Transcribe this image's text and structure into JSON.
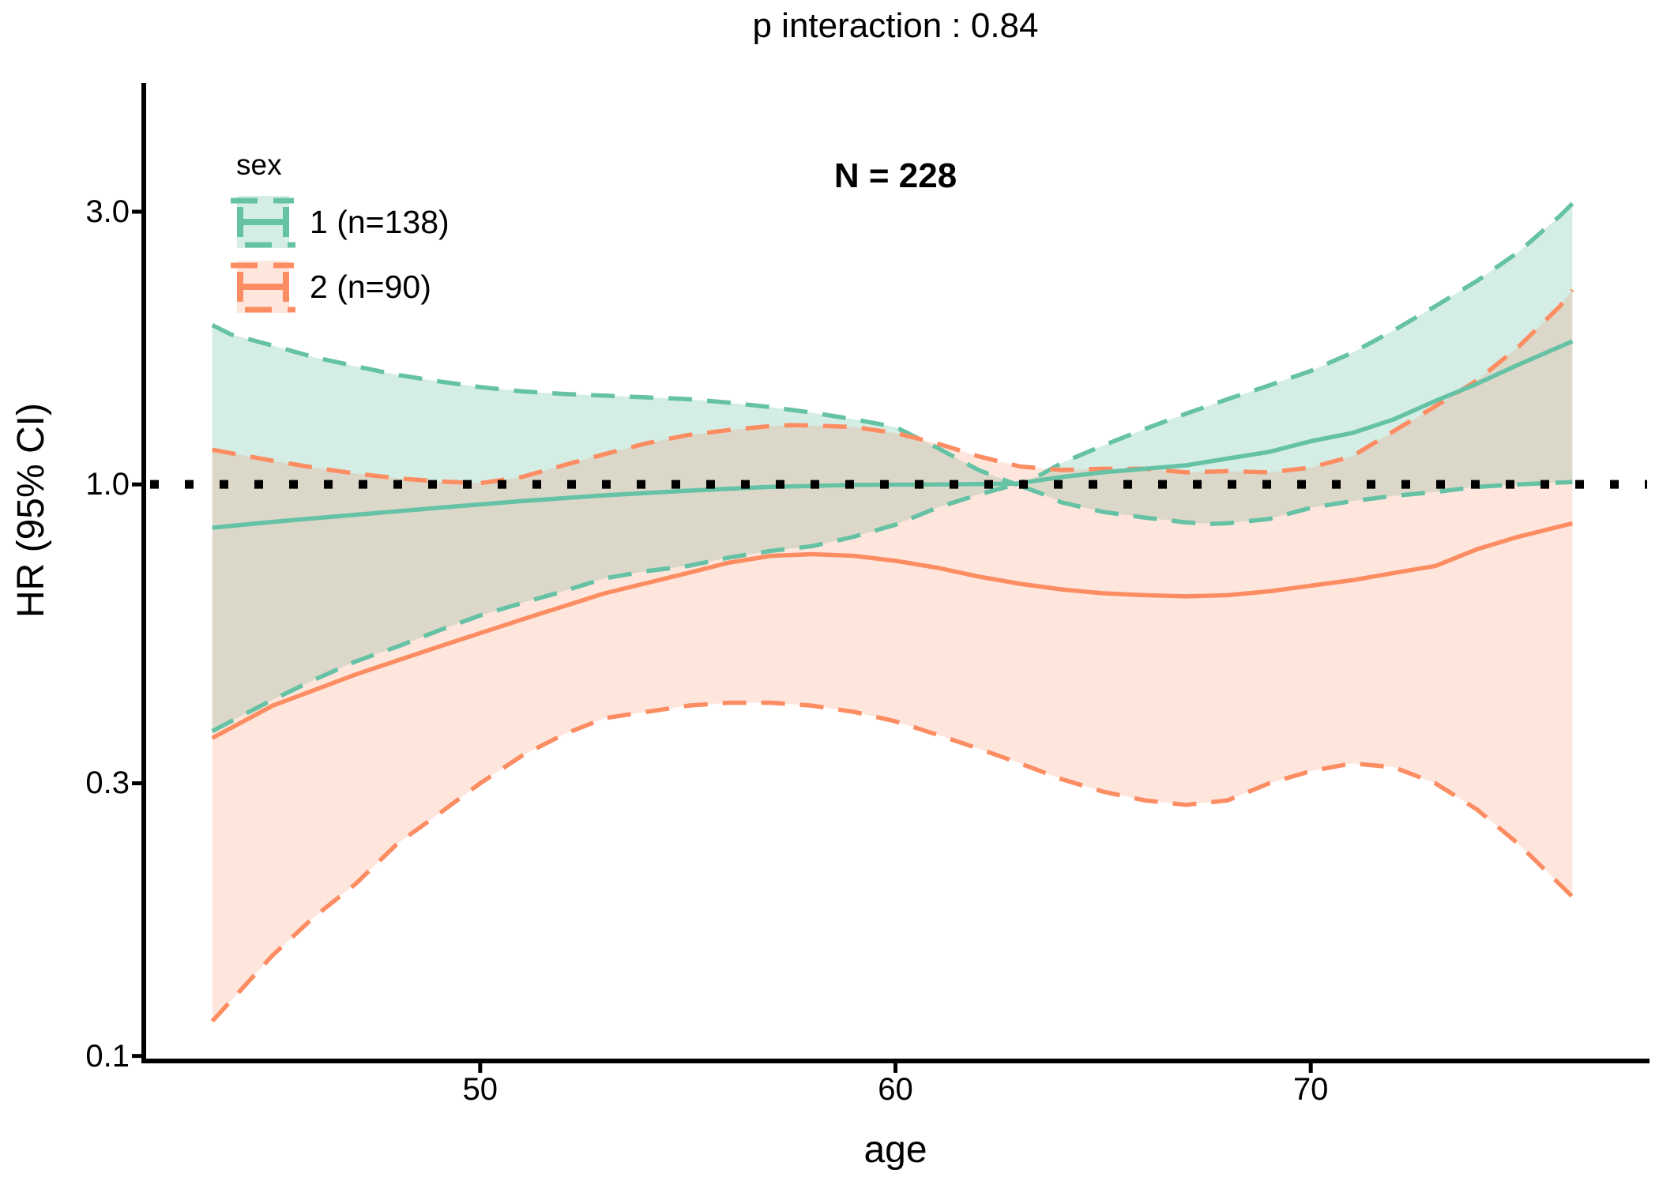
{
  "title": "p interaction : 0.84",
  "annotation": "N = 228",
  "legend": {
    "title": "sex",
    "items": [
      {
        "label": "1 (n=138)",
        "color": "#66C2A5",
        "fill": "rgba(102,194,165,0.28)"
      },
      {
        "label": "2 (n=90)",
        "color": "#FC8D62",
        "fill": "rgba(252,141,98,0.22)"
      }
    ]
  },
  "axes": {
    "x": {
      "label": "age",
      "ticks": [
        50,
        60,
        70
      ],
      "tick_labels": [
        "50",
        "60",
        "70"
      ],
      "range": [
        41.9,
        78.1
      ]
    },
    "y": {
      "label": "HR (95% CI)",
      "scale": "log",
      "ticks": [
        3.0,
        1.0,
        0.3,
        0.1
      ],
      "tick_labels": [
        "3.0",
        "1.0",
        "0.3",
        "0.1"
      ],
      "range": [
        0.098,
        5.04
      ]
    }
  },
  "chart_data": {
    "type": "line",
    "title": "p interaction : 0.84",
    "annotation": "N = 228",
    "xlabel": "age",
    "ylabel": "HR (95% CI)",
    "y_scale": "log",
    "x_ticks": [
      50,
      60,
      70
    ],
    "y_ticks": [
      3.0,
      1.0,
      0.3,
      0.1
    ],
    "x_range": [
      41.9,
      78.1
    ],
    "y_range": [
      0.098,
      5.04
    ],
    "x_data_range": [
      43.55,
      76.3
    ],
    "reference_hr": 1.0,
    "legend_position": "top-left-inside",
    "grid": false,
    "series": [
      {
        "name": "1 (n=138)",
        "color": "#66C2A5",
        "fill": "rgba(102,194,165,0.28)",
        "line": [
          [
            43.55,
            0.84
          ],
          [
            45,
            0.86
          ],
          [
            47,
            0.885
          ],
          [
            49,
            0.91
          ],
          [
            51,
            0.935
          ],
          [
            53,
            0.957
          ],
          [
            55,
            0.975
          ],
          [
            57,
            0.99
          ],
          [
            59,
            0.998
          ],
          [
            61,
            1.0
          ],
          [
            62.9,
            1.003
          ],
          [
            64,
            1.03
          ],
          [
            65,
            1.05
          ],
          [
            66,
            1.065
          ],
          [
            67,
            1.08
          ],
          [
            68,
            1.11
          ],
          [
            69,
            1.14
          ],
          [
            70,
            1.19
          ],
          [
            71,
            1.23
          ],
          [
            72,
            1.3
          ],
          [
            73,
            1.4
          ],
          [
            74,
            1.5
          ],
          [
            75,
            1.62
          ],
          [
            76.3,
            1.78
          ]
        ],
        "upper": [
          [
            43.55,
            1.9
          ],
          [
            44,
            1.83
          ],
          [
            45,
            1.75
          ],
          [
            46,
            1.67
          ],
          [
            47,
            1.61
          ],
          [
            48,
            1.555
          ],
          [
            49,
            1.515
          ],
          [
            50,
            1.48
          ],
          [
            51,
            1.455
          ],
          [
            52,
            1.44
          ],
          [
            53,
            1.43
          ],
          [
            54,
            1.42
          ],
          [
            55,
            1.41
          ],
          [
            56,
            1.39
          ],
          [
            57,
            1.365
          ],
          [
            58,
            1.335
          ],
          [
            59,
            1.3
          ],
          [
            60,
            1.26
          ],
          [
            61,
            1.16
          ],
          [
            62,
            1.06
          ],
          [
            62.9,
            1.0
          ],
          [
            63.5,
            1.04
          ],
          [
            64,
            1.09
          ],
          [
            65,
            1.17
          ],
          [
            66,
            1.25
          ],
          [
            67,
            1.33
          ],
          [
            68,
            1.41
          ],
          [
            69,
            1.49
          ],
          [
            70,
            1.58
          ],
          [
            71,
            1.7
          ],
          [
            72,
            1.86
          ],
          [
            73,
            2.05
          ],
          [
            74,
            2.27
          ],
          [
            75,
            2.55
          ],
          [
            76,
            2.95
          ],
          [
            76.3,
            3.1
          ]
        ],
        "lower": [
          [
            43.55,
            0.37
          ],
          [
            44,
            0.385
          ],
          [
            45,
            0.42
          ],
          [
            46,
            0.455
          ],
          [
            47,
            0.49
          ],
          [
            48,
            0.52
          ],
          [
            49,
            0.555
          ],
          [
            50,
            0.59
          ],
          [
            51,
            0.62
          ],
          [
            52,
            0.65
          ],
          [
            53,
            0.685
          ],
          [
            54,
            0.705
          ],
          [
            55,
            0.72
          ],
          [
            56,
            0.745
          ],
          [
            57,
            0.765
          ],
          [
            58,
            0.78
          ],
          [
            59,
            0.81
          ],
          [
            60,
            0.85
          ],
          [
            61,
            0.91
          ],
          [
            62,
            0.96
          ],
          [
            62.9,
            1.0
          ],
          [
            63.5,
            0.965
          ],
          [
            64,
            0.93
          ],
          [
            65,
            0.895
          ],
          [
            66,
            0.875
          ],
          [
            67,
            0.858
          ],
          [
            67.6,
            0.853
          ],
          [
            68,
            0.855
          ],
          [
            69,
            0.87
          ],
          [
            70,
            0.91
          ],
          [
            71,
            0.935
          ],
          [
            72,
            0.955
          ],
          [
            73,
            0.97
          ],
          [
            74,
            0.99
          ],
          [
            75,
            1.0
          ],
          [
            76.3,
            1.01
          ]
        ]
      },
      {
        "name": "2 (n=90)",
        "color": "#FC8D62",
        "fill": "rgba(252,141,98,0.22)",
        "line": [
          [
            43.55,
            0.36
          ],
          [
            45,
            0.41
          ],
          [
            47,
            0.465
          ],
          [
            49,
            0.52
          ],
          [
            51,
            0.58
          ],
          [
            53,
            0.645
          ],
          [
            55,
            0.7
          ],
          [
            56,
            0.73
          ],
          [
            57,
            0.75
          ],
          [
            58,
            0.755
          ],
          [
            59,
            0.75
          ],
          [
            60,
            0.735
          ],
          [
            61,
            0.715
          ],
          [
            62,
            0.69
          ],
          [
            63,
            0.67
          ],
          [
            64,
            0.655
          ],
          [
            65,
            0.645
          ],
          [
            66,
            0.64
          ],
          [
            67,
            0.637
          ],
          [
            68,
            0.64
          ],
          [
            69,
            0.65
          ],
          [
            70,
            0.665
          ],
          [
            71,
            0.68
          ],
          [
            72,
            0.7
          ],
          [
            73,
            0.72
          ],
          [
            74,
            0.77
          ],
          [
            75,
            0.81
          ],
          [
            76.3,
            0.855
          ]
        ],
        "upper": [
          [
            43.55,
            1.15
          ],
          [
            45,
            1.1
          ],
          [
            46,
            1.07
          ],
          [
            47,
            1.045
          ],
          [
            48,
            1.025
          ],
          [
            49,
            1.012
          ],
          [
            50,
            1.005
          ],
          [
            51,
            1.03
          ],
          [
            52,
            1.08
          ],
          [
            53,
            1.13
          ],
          [
            54,
            1.18
          ],
          [
            55,
            1.22
          ],
          [
            56,
            1.245
          ],
          [
            57,
            1.265
          ],
          [
            57.5,
            1.27
          ],
          [
            58,
            1.268
          ],
          [
            59,
            1.26
          ],
          [
            60,
            1.23
          ],
          [
            61,
            1.18
          ],
          [
            62,
            1.12
          ],
          [
            63,
            1.075
          ],
          [
            64,
            1.06
          ],
          [
            65,
            1.065
          ],
          [
            66,
            1.065
          ],
          [
            67,
            1.05
          ],
          [
            68,
            1.055
          ],
          [
            69,
            1.05
          ],
          [
            70,
            1.07
          ],
          [
            71,
            1.12
          ],
          [
            72,
            1.24
          ],
          [
            73,
            1.37
          ],
          [
            74,
            1.52
          ],
          [
            75,
            1.74
          ],
          [
            76,
            2.05
          ],
          [
            76.3,
            2.19
          ]
        ],
        "lower": [
          [
            43.55,
            0.115
          ],
          [
            45,
            0.15
          ],
          [
            46,
            0.175
          ],
          [
            47,
            0.2
          ],
          [
            48,
            0.235
          ],
          [
            49,
            0.265
          ],
          [
            50,
            0.3
          ],
          [
            51,
            0.335
          ],
          [
            52,
            0.365
          ],
          [
            53,
            0.39
          ],
          [
            54,
            0.4
          ],
          [
            55,
            0.41
          ],
          [
            56,
            0.415
          ],
          [
            57,
            0.415
          ],
          [
            58,
            0.41
          ],
          [
            59,
            0.4
          ],
          [
            60,
            0.385
          ],
          [
            61,
            0.365
          ],
          [
            62,
            0.345
          ],
          [
            63,
            0.325
          ],
          [
            64,
            0.305
          ],
          [
            65,
            0.29
          ],
          [
            66,
            0.28
          ],
          [
            67,
            0.275
          ],
          [
            68,
            0.28
          ],
          [
            69,
            0.3
          ],
          [
            70,
            0.315
          ],
          [
            71,
            0.325
          ],
          [
            72,
            0.32
          ],
          [
            73,
            0.3
          ],
          [
            74,
            0.27
          ],
          [
            75,
            0.235
          ],
          [
            76.3,
            0.19
          ]
        ]
      }
    ]
  }
}
